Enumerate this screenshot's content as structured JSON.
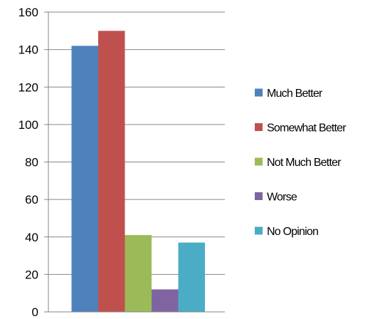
{
  "chart_data": {
    "type": "bar",
    "categories": [
      ""
    ],
    "series": [
      {
        "name": "Much Better",
        "values": [
          142
        ],
        "color": "#4F81BD"
      },
      {
        "name": "Somewhat Better",
        "values": [
          150
        ],
        "color": "#C0504D"
      },
      {
        "name": "Not Much Better",
        "values": [
          41
        ],
        "color": "#9BBB59"
      },
      {
        "name": "Worse",
        "values": [
          12
        ],
        "color": "#8064A2"
      },
      {
        "name": "No Opinion",
        "values": [
          37
        ],
        "color": "#4BACC6"
      }
    ],
    "yticks": [
      "0",
      "20",
      "40",
      "60",
      "80",
      "100",
      "120",
      "140",
      "160"
    ],
    "ylim": [
      0,
      160
    ],
    "title": "",
    "xlabel": "",
    "ylabel": "",
    "grid": true,
    "legend": "right"
  }
}
